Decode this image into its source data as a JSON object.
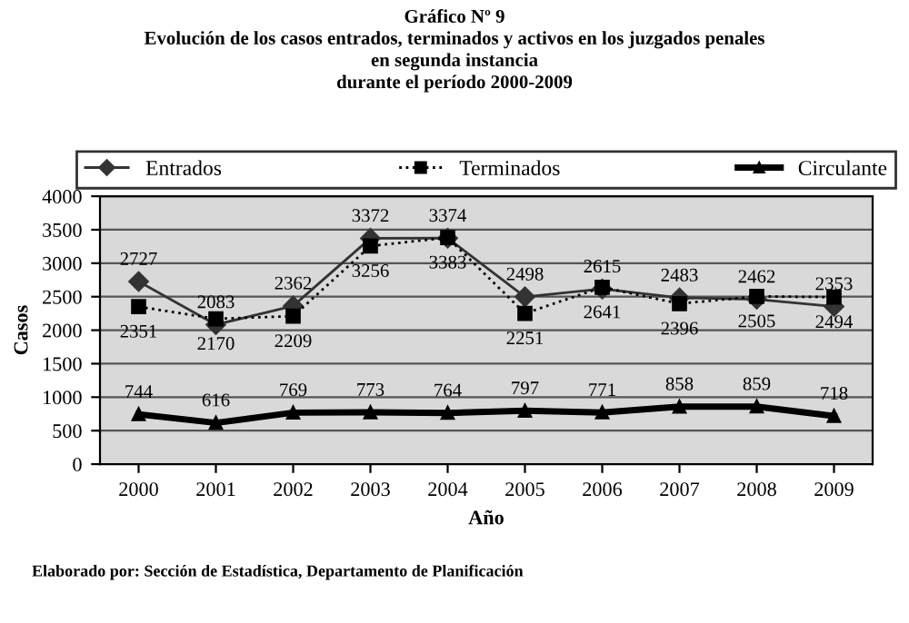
{
  "chart_data": {
    "type": "line",
    "title": "Gráfico Nº 9\nEvolución de los casos entrados, terminados y activos en los juzgados penales\nen segunda instancia\ndurante el período 2000-2009",
    "xlabel": "Año",
    "ylabel": "Casos",
    "categories": [
      "2000",
      "2001",
      "2002",
      "2003",
      "2004",
      "2005",
      "2006",
      "2007",
      "2008",
      "2009"
    ],
    "series": [
      {
        "name": "Entrados",
        "color": "#333333",
        "marker": "diamond",
        "line_style": "solid",
        "values": [
          2727,
          2083,
          2362,
          3372,
          3374,
          2498,
          2615,
          2483,
          2462,
          2353
        ]
      },
      {
        "name": "Terminados",
        "color": "#000000",
        "marker": "square",
        "line_style": "dotted",
        "values": [
          2351,
          2170,
          2209,
          3256,
          3383,
          2251,
          2641,
          2396,
          2505,
          2494
        ]
      },
      {
        "name": "Circulante",
        "color": "#000000",
        "marker": "triangle",
        "line_style": "solid",
        "values": [
          744,
          616,
          769,
          773,
          764,
          797,
          771,
          858,
          859,
          718
        ]
      }
    ],
    "ylim": [
      0,
      4000
    ],
    "yticks": [
      0,
      500,
      1000,
      1500,
      2000,
      2500,
      3000,
      3500,
      4000
    ],
    "grid": "y",
    "legend": "top",
    "data_labels": true,
    "annotations": [
      "Elaborado por: Sección de Estadística, Departamento de Planificación"
    ]
  }
}
